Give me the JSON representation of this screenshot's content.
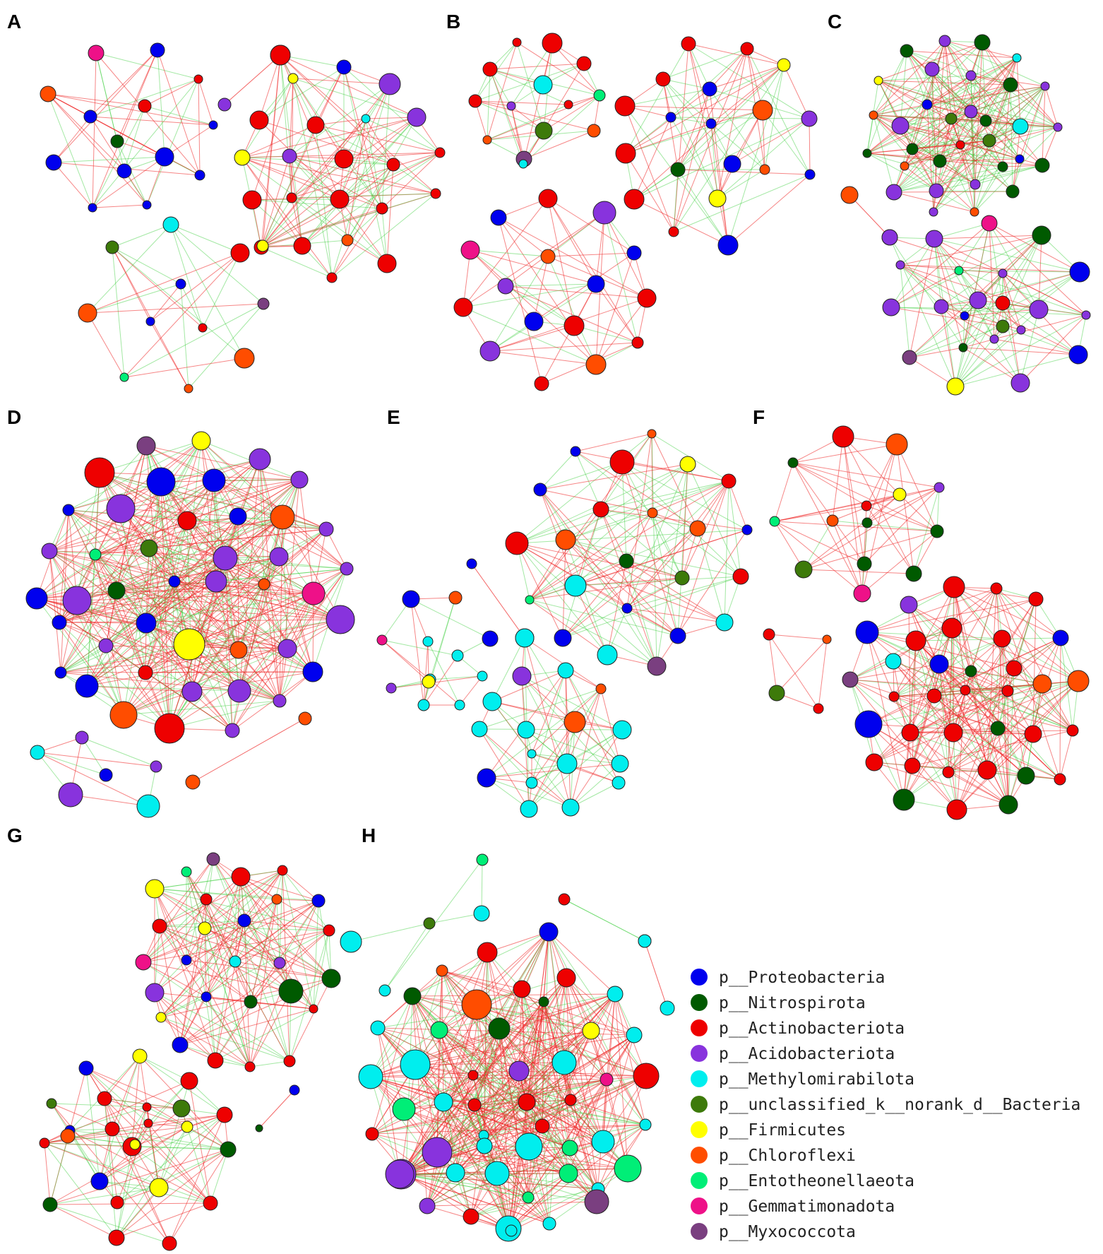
{
  "figure": {
    "panels": [
      {
        "letter": "A"
      },
      {
        "letter": "B"
      },
      {
        "letter": "C"
      },
      {
        "letter": "D"
      },
      {
        "letter": "E"
      },
      {
        "letter": "F"
      },
      {
        "letter": "G"
      },
      {
        "letter": "H"
      }
    ],
    "edge_colors": {
      "positive": "#ee2222",
      "negative": "#33cc33"
    },
    "legend": [
      {
        "label": "p__Proteobacteria",
        "color": "#0000ee"
      },
      {
        "label": "p__Nitrospirota",
        "color": "#005a00"
      },
      {
        "label": "p__Actinobacteriota",
        "color": "#ee0000"
      },
      {
        "label": "p__Acidobacteriota",
        "color": "#8833dd"
      },
      {
        "label": "p__Methylomirabilota",
        "color": "#00eeee"
      },
      {
        "label": "p__unclassified_k__norank_d__Bacteria",
        "color": "#3d7a0a"
      },
      {
        "label": "p__Firmicutes",
        "color": "#ffff00"
      },
      {
        "label": "p__Chloroflexi",
        "color": "#ff4d00"
      },
      {
        "label": "p__Entotheonellaeota",
        "color": "#00ee77"
      },
      {
        "label": "p__Gemmatimonadota",
        "color": "#ee1188"
      },
      {
        "label": "p__Myxococcota",
        "color": "#7a3f80"
      }
    ]
  }
}
